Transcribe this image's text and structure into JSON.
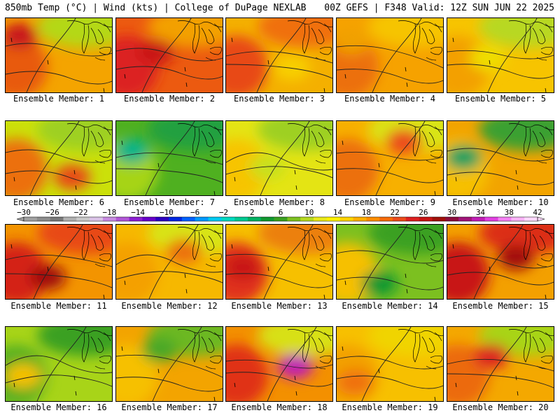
{
  "header": {
    "left": "850mb Temp (°C) | Wind (kts) | College of DuPage NEXLAB",
    "right": "00Z GEFS | F348 Valid: 12Z SUN JUN 22 2025"
  },
  "colorbar": {
    "labels": [
      "-30",
      "-26",
      "-22",
      "-18",
      "-14",
      "-10",
      "-6",
      "-2",
      "2",
      "6",
      "10",
      "14",
      "18",
      "22",
      "26",
      "30",
      "34",
      "38",
      "42"
    ],
    "colors": [
      "#a0a0a0",
      "#8c8c8c",
      "#787878",
      "#b0b0b0",
      "#c8c8c8",
      "#d9c2e6",
      "#c78ae0",
      "#b055d6",
      "#8c1fd1",
      "#6600c8",
      "#2c00c0",
      "#0026e0",
      "#0060ff",
      "#0098ff",
      "#00c8f0",
      "#00d8c0",
      "#00c890",
      "#00b060",
      "#109830",
      "#3aa020",
      "#7cc020",
      "#b6d820",
      "#e8e81a",
      "#fff000",
      "#ffd200",
      "#ffaf00",
      "#ff8c00",
      "#f56a0a",
      "#eb4a1a",
      "#dc2020",
      "#c81414",
      "#a0100a",
      "#8c0c3c",
      "#a01478",
      "#c01eb4",
      "#e040e0",
      "#f37ff2",
      "#f7b2f6",
      "#fad7fa"
    ]
  },
  "members": [
    {
      "label": "Ensemble Member: 1",
      "base": "#f4a400",
      "top": "#b4d814",
      "left": "#e85a10",
      "blob": "#c8141e"
    },
    {
      "label": "Ensemble Member: 2",
      "base": "#ec5a10",
      "top": "#f3a000",
      "left": "#dc2020",
      "blob": "#c81414"
    },
    {
      "label": "Ensemble Member: 3",
      "base": "#f4b000",
      "top": "#f07010",
      "left": "#e84a12",
      "blob": "#f8d000"
    },
    {
      "label": "Ensemble Member: 4",
      "base": "#f6a200",
      "top": "#f6c400",
      "left": "#ec7008",
      "blob": "#f0a000"
    },
    {
      "label": "Ensemble Member: 5",
      "base": "#f7c400",
      "top": "#b8d820",
      "left": "#f3a000",
      "blob": "#eede00"
    },
    {
      "label": "Ensemble Member: 6",
      "base": "#cbe00a",
      "top": "#9ed020",
      "left": "#ec7010",
      "blob": "#e84a12"
    },
    {
      "label": "Ensemble Member: 7",
      "base": "#4fb020",
      "top": "#20a040",
      "left": "#a6d418",
      "blob": "#00b48a"
    },
    {
      "label": "Ensemble Member: 8",
      "base": "#e4e414",
      "top": "#9ed020",
      "left": "#f7c400",
      "blob": "#c8e01a"
    },
    {
      "label": "Ensemble Member: 9",
      "base": "#f7b000",
      "top": "#d9e414",
      "left": "#ec7010",
      "blob": "#eb4a1a"
    },
    {
      "label": "Ensemble Member: 10",
      "base": "#f2a400",
      "top": "#3aa030",
      "left": "#f6c000",
      "blob": "#00a060"
    },
    {
      "label": "Ensemble Member: 11",
      "base": "#f39400",
      "top": "#e84812",
      "left": "#d42018",
      "blob": "#a0100a"
    },
    {
      "label": "Ensemble Member: 12",
      "base": "#f6b800",
      "top": "#d8e414",
      "left": "#f4a000",
      "blob": "#ec7010"
    },
    {
      "label": "Ensemble Member: 13",
      "base": "#f6c000",
      "top": "#ec8010",
      "left": "#e0301a",
      "blob": "#c81414"
    },
    {
      "label": "Ensemble Member: 14",
      "base": "#7cc020",
      "top": "#3aa020",
      "left": "#f6c000",
      "blob": "#109830"
    },
    {
      "label": "Ensemble Member: 15",
      "base": "#f3a000",
      "top": "#dc2e18",
      "left": "#c81414",
      "blob": "#a0100a"
    },
    {
      "label": "Ensemble Member: 16",
      "base": "#a8d418",
      "top": "#3aa020",
      "left": "#58b020",
      "blob": "#f6c000"
    },
    {
      "label": "Ensemble Member: 17",
      "base": "#f3a400",
      "top": "#6cb820",
      "left": "#f6c000",
      "blob": "#4aa828"
    },
    {
      "label": "Ensemble Member: 18",
      "base": "#f39000",
      "top": "#d8e014",
      "left": "#e03018",
      "blob": "#c01eb4"
    },
    {
      "label": "Ensemble Member: 19",
      "base": "#f7c000",
      "top": "#f0d400",
      "left": "#f3a000",
      "blob": "#f07010"
    },
    {
      "label": "Ensemble Member: 20",
      "base": "#f4a800",
      "top": "#a8d418",
      "left": "#ec6a10",
      "blob": "#dc2020"
    }
  ]
}
